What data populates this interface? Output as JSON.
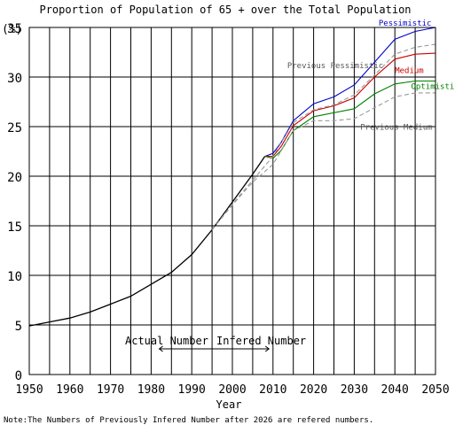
{
  "chart_data": {
    "type": "line",
    "title": "Proportion of Population of 65 + over the Total Population",
    "ylabel": "(%)",
    "xlabel": "Year",
    "note": "Note:The Numbers of Previously Infered Number after 2026 are refered numbers.",
    "xlim": [
      1950,
      2050
    ],
    "ylim": [
      0,
      35
    ],
    "grid": true,
    "x_ticks": [
      "1950",
      "1960",
      "1970",
      "1980",
      "1990",
      "2000",
      "2010",
      "2020",
      "2030",
      "2040",
      "2050"
    ],
    "y_ticks": [
      "0",
      "5",
      "10",
      "15",
      "20",
      "25",
      "30",
      "35"
    ],
    "annotations": {
      "actual": "Actual Number",
      "infered": "Infered Number",
      "arrow_range": [
        1982,
        2009
      ]
    },
    "colors": {
      "actual": "#000000",
      "pessimistic": "#0000cc",
      "medium": "#cc0000",
      "optimistic": "#008000",
      "previous": "#999999"
    },
    "series": [
      {
        "name": "",
        "key": "actual",
        "x": [
          1950,
          1955,
          1960,
          1965,
          1970,
          1975,
          1980,
          1985,
          1990,
          1995,
          2000,
          2005,
          2008
        ],
        "values": [
          4.9,
          5.3,
          5.7,
          6.3,
          7.1,
          7.9,
          9.1,
          10.3,
          12.1,
          14.6,
          17.4,
          20.2,
          22.0
        ]
      },
      {
        "name": "Pessimistic",
        "key": "pessimistic",
        "x": [
          2008,
          2010,
          2012,
          2015,
          2020,
          2025,
          2030,
          2035,
          2040,
          2045,
          2050
        ],
        "values": [
          22.0,
          22.3,
          23.4,
          25.6,
          27.3,
          28.0,
          29.2,
          31.5,
          33.8,
          34.6,
          35.0
        ]
      },
      {
        "name": "Medium",
        "key": "medium",
        "x": [
          2008,
          2010,
          2012,
          2015,
          2020,
          2025,
          2030,
          2035,
          2040,
          2045,
          2050
        ],
        "values": [
          22.0,
          22.0,
          23.0,
          25.1,
          26.6,
          27.1,
          27.9,
          30.0,
          31.8,
          32.3,
          32.4
        ]
      },
      {
        "name": "Optimistic",
        "key": "optimistic",
        "x": [
          2008,
          2010,
          2012,
          2015,
          2020,
          2025,
          2030,
          2035,
          2040,
          2045,
          2050
        ],
        "values": [
          22.0,
          21.8,
          22.6,
          24.6,
          26.0,
          26.4,
          26.8,
          28.3,
          29.3,
          29.6,
          29.6
        ]
      },
      {
        "name": "Previous Pessimistic",
        "key": "previous",
        "dashed": true,
        "x": [
          1995,
          2000,
          2005,
          2010,
          2015,
          2020,
          2025,
          2030,
          2035,
          2040,
          2045,
          2050
        ],
        "values": [
          14.6,
          17.2,
          19.6,
          22.0,
          25.4,
          26.7,
          27.2,
          28.2,
          30.2,
          32.3,
          33.0,
          33.3
        ]
      },
      {
        "name": "Previous Medium",
        "key": "previous",
        "dashed": true,
        "x": [
          1995,
          2000,
          2005,
          2010,
          2015,
          2020,
          2025,
          2030,
          2035,
          2040,
          2045,
          2050
        ],
        "values": [
          14.6,
          17.1,
          19.4,
          21.2,
          24.6,
          25.6,
          25.6,
          25.8,
          26.9,
          28.0,
          28.4,
          28.4
        ]
      }
    ]
  }
}
